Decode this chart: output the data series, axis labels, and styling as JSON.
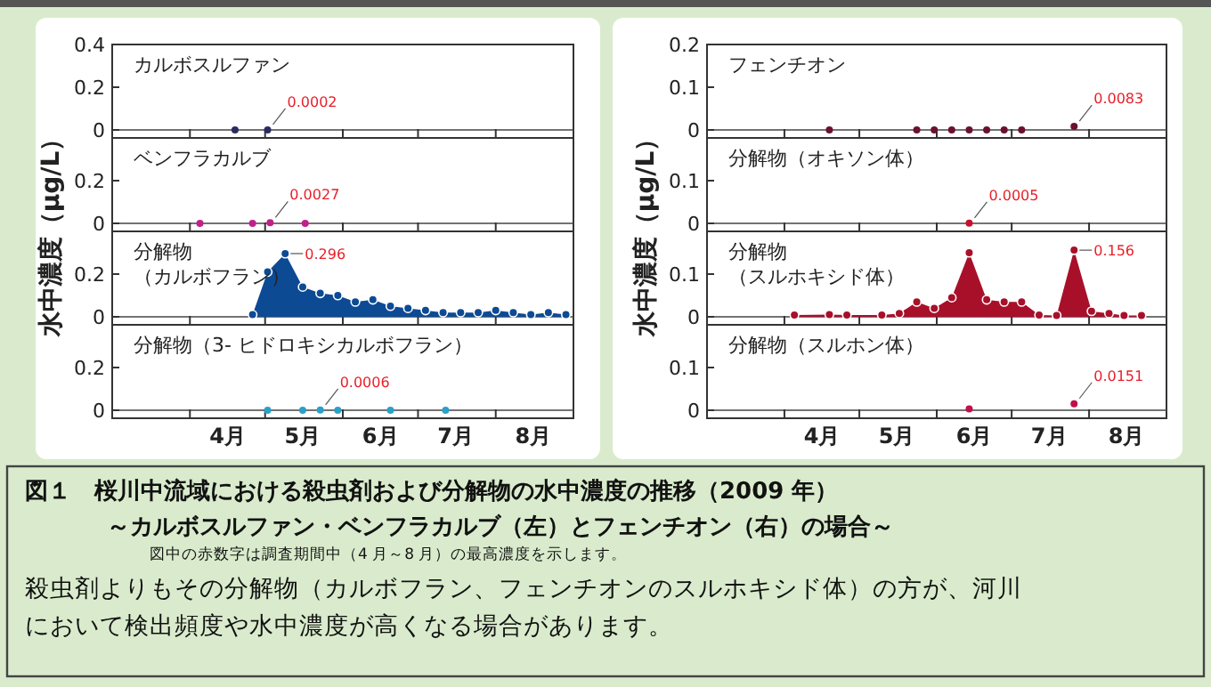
{
  "chart_data": [
    {
      "type": "scatter",
      "title": "カルボスルファン",
      "ylabel": "水中濃度（μg/L）",
      "marker": "circle",
      "color": "#2b2b5e",
      "x": [
        "--04-19",
        "--05-02"
      ],
      "values": [
        0,
        0.0002
      ],
      "value_labels": [
        null,
        "0.0002"
      ],
      "xlim": [
        "--03-01",
        "--09-01"
      ],
      "xticks": [
        {
          "value": "--04-01",
          "label": null
        },
        {
          "value": "--05-01",
          "label": null
        },
        {
          "value": "--06-01",
          "label": null
        },
        {
          "value": "--07-01",
          "label": null
        },
        {
          "value": "--08-01",
          "label": null
        }
      ],
      "ylim": [
        0,
        0.4
      ],
      "yticks": [
        0,
        0.2,
        0.4
      ],
      "tick_labels": "y"
    },
    {
      "type": "scatter",
      "title": "ベンフラカルブ",
      "marker": "circle",
      "color": "#c0208a",
      "x": [
        "--04-05",
        "--04-26",
        "--05-03",
        "--05-17"
      ],
      "values": [
        0,
        0,
        0.0027,
        0
      ],
      "value_labels": [
        null,
        null,
        "0.0027",
        null
      ],
      "xlim": [
        "--03-01",
        "--09-01"
      ],
      "xticks": [
        {
          "value": "--04-01",
          "label": null
        },
        {
          "value": "--05-01",
          "label": null
        },
        {
          "value": "--06-01",
          "label": null
        },
        {
          "value": "--07-01",
          "label": null
        },
        {
          "value": "--08-01",
          "label": null
        }
      ],
      "ylim": [
        0,
        0.4
      ],
      "yticks": [
        0,
        0.2
      ],
      "tick_labels": "y"
    },
    {
      "type": "area",
      "title": "分解物（カルボフラン）",
      "marker": "circle",
      "color": "#0d4a94",
      "x": [
        "--04-26",
        "--05-02",
        "--05-09",
        "--05-16",
        "--05-23",
        "--05-30",
        "--06-06",
        "--06-13",
        "--06-20",
        "--06-27",
        "--07-04",
        "--07-11",
        "--07-18",
        "--07-25",
        "--08-01",
        "--08-08",
        "--08-15",
        "--08-22",
        "--08-29"
      ],
      "values": [
        0.01,
        0.21,
        0.296,
        0.14,
        0.11,
        0.1,
        0.07,
        0.08,
        0.05,
        0.04,
        0.03,
        0.02,
        0.02,
        0.02,
        0.03,
        0.02,
        0.01,
        0.02,
        0.01
      ],
      "value_labels": [
        null,
        null,
        "0.296",
        null,
        null,
        null,
        null,
        null,
        null,
        null,
        null,
        null,
        null,
        null,
        null,
        null,
        null,
        null,
        null
      ],
      "xlim": [
        "--03-01",
        "--09-01"
      ],
      "xticks": [
        {
          "value": "--04-01",
          "label": null
        },
        {
          "value": "--05-01",
          "label": null
        },
        {
          "value": "--06-01",
          "label": null
        },
        {
          "value": "--07-01",
          "label": null
        },
        {
          "value": "--08-01",
          "label": null
        }
      ],
      "ylim": [
        0,
        0.4
      ],
      "yticks": [
        0,
        0.2
      ],
      "tick_labels": "y"
    },
    {
      "type": "scatter",
      "title": "分解物（3- ヒドロキシカルボフラン）",
      "marker": "circle",
      "color": "#2aa0c8",
      "x": [
        "--05-02",
        "--05-16",
        "--05-23",
        "--05-30",
        "--06-20",
        "--07-12"
      ],
      "values": [
        0,
        0,
        0.0006,
        0,
        0,
        0
      ],
      "value_labels": [
        null,
        null,
        "0.0006",
        null,
        null,
        null
      ],
      "xlim": [
        "--03-01",
        "--09-01"
      ],
      "xticks": [
        {
          "value": "--04-01",
          "label": null
        },
        {
          "value": "--04-16",
          "label": "4月"
        },
        {
          "value": "--05-01",
          "label": null
        },
        {
          "value": "--05-16",
          "label": "5月"
        },
        {
          "value": "--06-01",
          "label": null
        },
        {
          "value": "--06-16",
          "label": "6月"
        },
        {
          "value": "--07-01",
          "label": null
        },
        {
          "value": "--07-16",
          "label": "7月"
        },
        {
          "value": "--08-01",
          "label": null
        },
        {
          "value": "--08-16",
          "label": "8月"
        }
      ],
      "ylim": [
        0,
        0.4
      ],
      "yticks": [
        0,
        0.2
      ]
    },
    {
      "type": "scatter",
      "title": "フェンチオン",
      "ylabel": "水中濃度（μg/L）",
      "marker": "circle",
      "color": "#6b1030",
      "x": [
        "--04-19",
        "--05-24",
        "--05-31",
        "--06-07",
        "--06-14",
        "--06-21",
        "--06-28",
        "--07-05",
        "--07-26"
      ],
      "values": [
        0,
        0,
        0,
        0,
        0,
        0,
        0,
        0,
        0.0083
      ],
      "value_labels": [
        null,
        null,
        null,
        null,
        null,
        null,
        null,
        null,
        "0.0083"
      ],
      "xlim": [
        "--03-01",
        "--09-01"
      ],
      "xticks": [
        {
          "value": "--04-01",
          "label": null
        },
        {
          "value": "--05-01",
          "label": null
        },
        {
          "value": "--06-01",
          "label": null
        },
        {
          "value": "--07-01",
          "label": null
        },
        {
          "value": "--08-01",
          "label": null
        }
      ],
      "ylim": [
        0,
        0.2
      ],
      "yticks": [
        0,
        0.1,
        0.2
      ],
      "tick_labels": "y"
    },
    {
      "type": "scatter",
      "title": "分解物（オキソン体）",
      "marker": "circle",
      "color": "#c8102e",
      "x": [
        "--06-14"
      ],
      "values": [
        0.0005
      ],
      "value_labels": [
        "0.0005"
      ],
      "xlim": [
        "--03-01",
        "--09-01"
      ],
      "xticks": [
        {
          "value": "--04-01",
          "label": null
        },
        {
          "value": "--05-01",
          "label": null
        },
        {
          "value": "--06-01",
          "label": null
        },
        {
          "value": "--07-01",
          "label": null
        },
        {
          "value": "--08-01",
          "label": null
        }
      ],
      "ylim": [
        0,
        0.2
      ],
      "yticks": [
        0,
        0.1
      ],
      "tick_labels": "y"
    },
    {
      "type": "area",
      "title": "分解物（スルホキシド体）",
      "marker": "circle",
      "color": "#a8102a",
      "x": [
        "--04-05",
        "--04-19",
        "--04-26",
        "--05-10",
        "--05-17",
        "--05-24",
        "--05-31",
        "--06-07",
        "--06-14",
        "--06-21",
        "--06-28",
        "--07-05",
        "--07-12",
        "--07-19",
        "--07-26",
        "--08-02",
        "--08-09",
        "--08-15",
        "--08-22"
      ],
      "values": [
        0.004,
        0.005,
        0.004,
        0.004,
        0.008,
        0.035,
        0.02,
        0.045,
        0.15,
        0.04,
        0.035,
        0.035,
        0.004,
        0.003,
        0.156,
        0.013,
        0.008,
        0.003,
        0.003
      ],
      "value_labels": [
        null,
        null,
        null,
        null,
        null,
        null,
        null,
        null,
        null,
        null,
        null,
        null,
        null,
        null,
        "0.156",
        null,
        null,
        null,
        null
      ],
      "xlim": [
        "--03-01",
        "--09-01"
      ],
      "xticks": [
        {
          "value": "--04-01",
          "label": null
        },
        {
          "value": "--05-01",
          "label": null
        },
        {
          "value": "--06-01",
          "label": null
        },
        {
          "value": "--07-01",
          "label": null
        },
        {
          "value": "--08-01",
          "label": null
        }
      ],
      "ylim": [
        0,
        0.2
      ],
      "yticks": [
        0,
        0.1
      ],
      "tick_labels": "y"
    },
    {
      "type": "scatter",
      "title": "分解物（スルホン体）",
      "marker": "circle",
      "color": "#c0104a",
      "x": [
        "--06-14",
        "--07-26"
      ],
      "values": [
        0.003,
        0.0151
      ],
      "value_labels": [
        null,
        "0.0151"
      ],
      "xlim": [
        "--03-01",
        "--09-01"
      ],
      "xticks": [
        {
          "value": "--04-01",
          "label": null
        },
        {
          "value": "--04-16",
          "label": "4月"
        },
        {
          "value": "--05-01",
          "label": null
        },
        {
          "value": "--05-16",
          "label": "5月"
        },
        {
          "value": "--06-01",
          "label": null
        },
        {
          "value": "--06-16",
          "label": "6月"
        },
        {
          "value": "--07-01",
          "label": null
        },
        {
          "value": "--07-16",
          "label": "7月"
        },
        {
          "value": "--08-01",
          "label": null
        },
        {
          "value": "--08-16",
          "label": "8月"
        }
      ],
      "ylim": [
        0,
        0.2
      ],
      "yticks": [
        0,
        0.1
      ]
    },
    {
      "type": "other",
      "title": "図１　桜川中流域における殺虫剤および分解物の水中濃度の推移（2009 年）",
      "subtitle": "～カルボスルファン・ベンフラカルブ（左）とフェンチオン（右）の場合～",
      "annotations": [
        "図中の赤数字は調査期間中（4 月～8 月）の最高濃度を示します。",
        "殺虫剤よりもその分解物（カルボフラン、フェンチオンのスルホキシド体）の方が、河川",
        "において検出頻度や水中濃度が高くなる場合があります。"
      ]
    }
  ]
}
